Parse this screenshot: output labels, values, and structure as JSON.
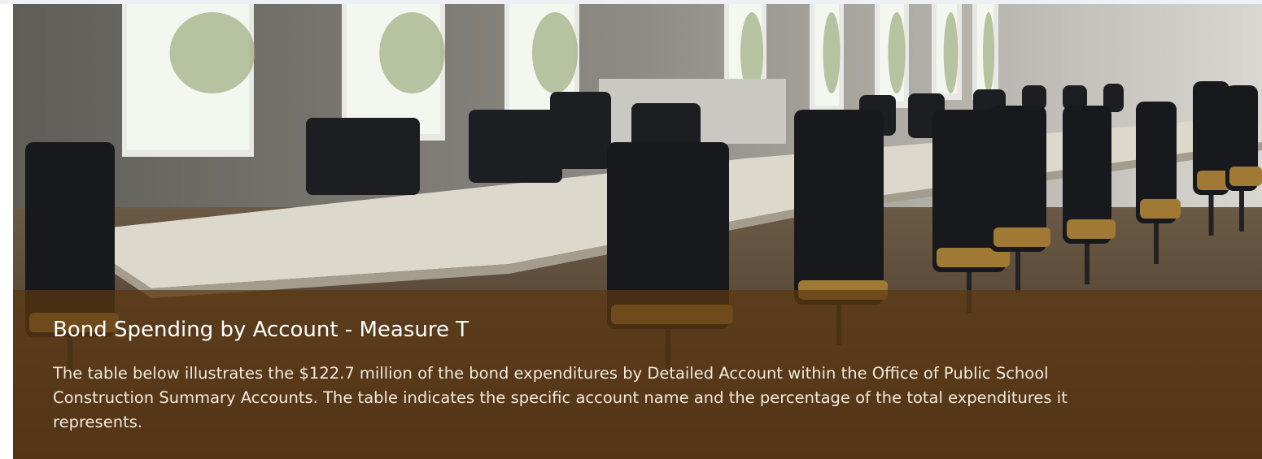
{
  "header": {
    "title": "Bond Spending by Account - Measure T",
    "description": "The table below illustrates the $122.7 million of the bond expenditures by Detailed Account within the Office of Public School Construction Summary Accounts.  The table indicates the specific account name and the percentage of the total expenditures it represents."
  }
}
